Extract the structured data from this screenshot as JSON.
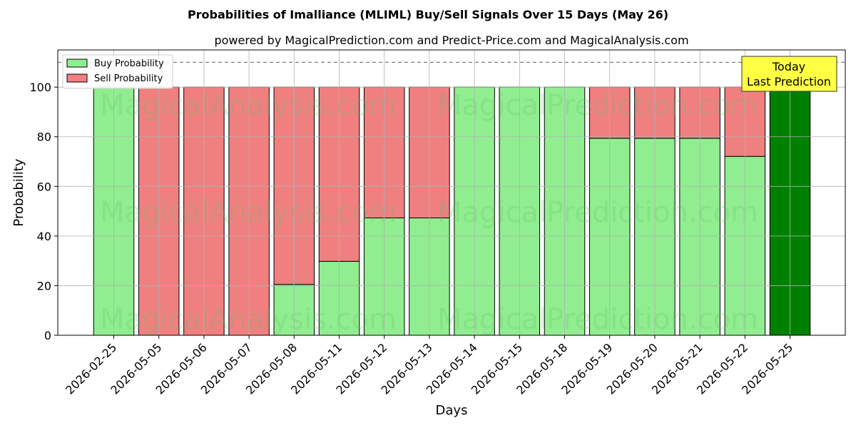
{
  "chart_data": {
    "type": "bar",
    "stacked": true,
    "title": "Probabilities of Imalliance (MLIML) Buy/Sell Signals Over 15 Days (May 26)",
    "subtitle": "powered by MagicalPrediction.com and Predict-Price.com and MagicalAnalysis.com",
    "xlabel": "Days",
    "ylabel": "Probability",
    "ylim": [
      0,
      115
    ],
    "yticks": [
      0,
      20,
      40,
      60,
      80,
      100
    ],
    "grid": true,
    "legend_position": "top-left",
    "categories": [
      "2026-02-25",
      "2026-05-05",
      "2026-05-06",
      "2026-05-07",
      "2026-05-08",
      "2026-05-11",
      "2026-05-12",
      "2026-05-13",
      "2026-05-14",
      "2026-05-15",
      "2026-05-18",
      "2026-05-19",
      "2026-05-20",
      "2026-05-21",
      "2026-05-22",
      "2026-05-25"
    ],
    "series": [
      {
        "name": "Buy Probability",
        "color": "#90ee90",
        "values": [
          100,
          0,
          0,
          0,
          20.5,
          29.8,
          47.3,
          47.3,
          100,
          100,
          100,
          79.4,
          79.4,
          79.4,
          72.1,
          100
        ]
      },
      {
        "name": "Sell Probability",
        "color": "#f08080",
        "values": [
          0,
          100,
          100,
          100,
          79.5,
          70.2,
          52.7,
          52.7,
          0,
          0,
          0,
          20.6,
          20.6,
          20.6,
          27.9,
          0
        ]
      }
    ],
    "highlight": {
      "index": 15,
      "color": "#008000"
    },
    "reference_line": {
      "y": 110,
      "style": "dashed",
      "color": "#808080"
    },
    "annotation": {
      "lines": [
        "Today",
        "Last Prediction"
      ],
      "background": "#ffff44"
    },
    "watermarks": [
      "MagicalAnalysis.com",
      "MagicalPrediction.com"
    ]
  }
}
